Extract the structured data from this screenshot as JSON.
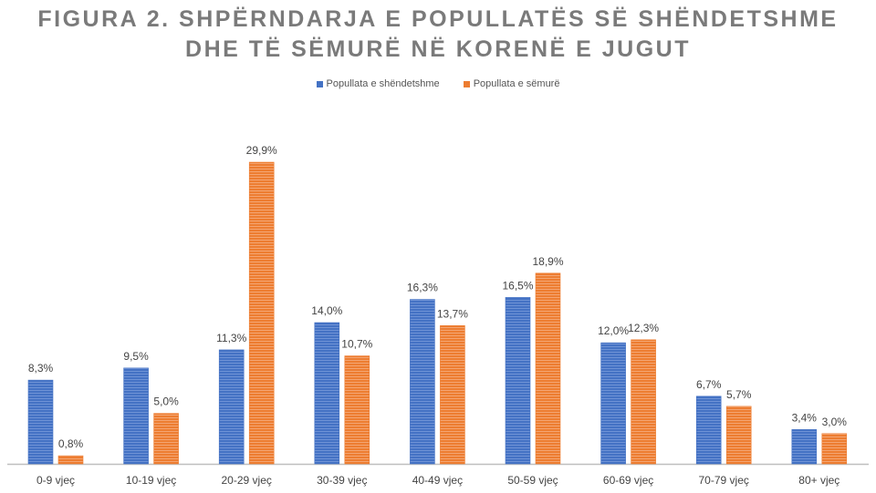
{
  "chart_data": {
    "type": "bar",
    "title_line1": "FIGURA 2. SHPËRNDARJA E POPULLATËS SË SHËNDETSHME",
    "title_line2": "DHE TË SËMURË NË KORENË E JUGUT",
    "xlabel": "",
    "ylabel": "",
    "ylim": [
      0,
      30
    ],
    "grid": false,
    "legend_position": "top-center",
    "categories": [
      "0-9 vjeç",
      "10-19 vjeç",
      "20-29 vjeç",
      "30-39 vjeç",
      "40-49 vjeç",
      "50-59 vjeç",
      "60-69 vjeç",
      "70-79 vjeç",
      "80+ vjeç"
    ],
    "series": [
      {
        "name": "Popullata e shëndetshme",
        "color": "#4472C4",
        "values": [
          8.3,
          9.5,
          11.3,
          14.0,
          16.3,
          16.5,
          12.0,
          6.7,
          3.4
        ],
        "labels": [
          "8,3%",
          "9,5%",
          "11,3%",
          "14,0%",
          "16,3%",
          "16,5%",
          "12,0%",
          "6,7%",
          "3,4%"
        ]
      },
      {
        "name": "Popullata e sëmurë",
        "color": "#ED7D31",
        "values": [
          0.8,
          5.0,
          29.9,
          10.7,
          13.7,
          18.9,
          12.3,
          5.7,
          3.0
        ],
        "labels": [
          "0,8%",
          "5,0%",
          "29,9%",
          "10,7%",
          "13,7%",
          "18,9%",
          "12,3%",
          "5,7%",
          "3,0%"
        ]
      }
    ]
  }
}
